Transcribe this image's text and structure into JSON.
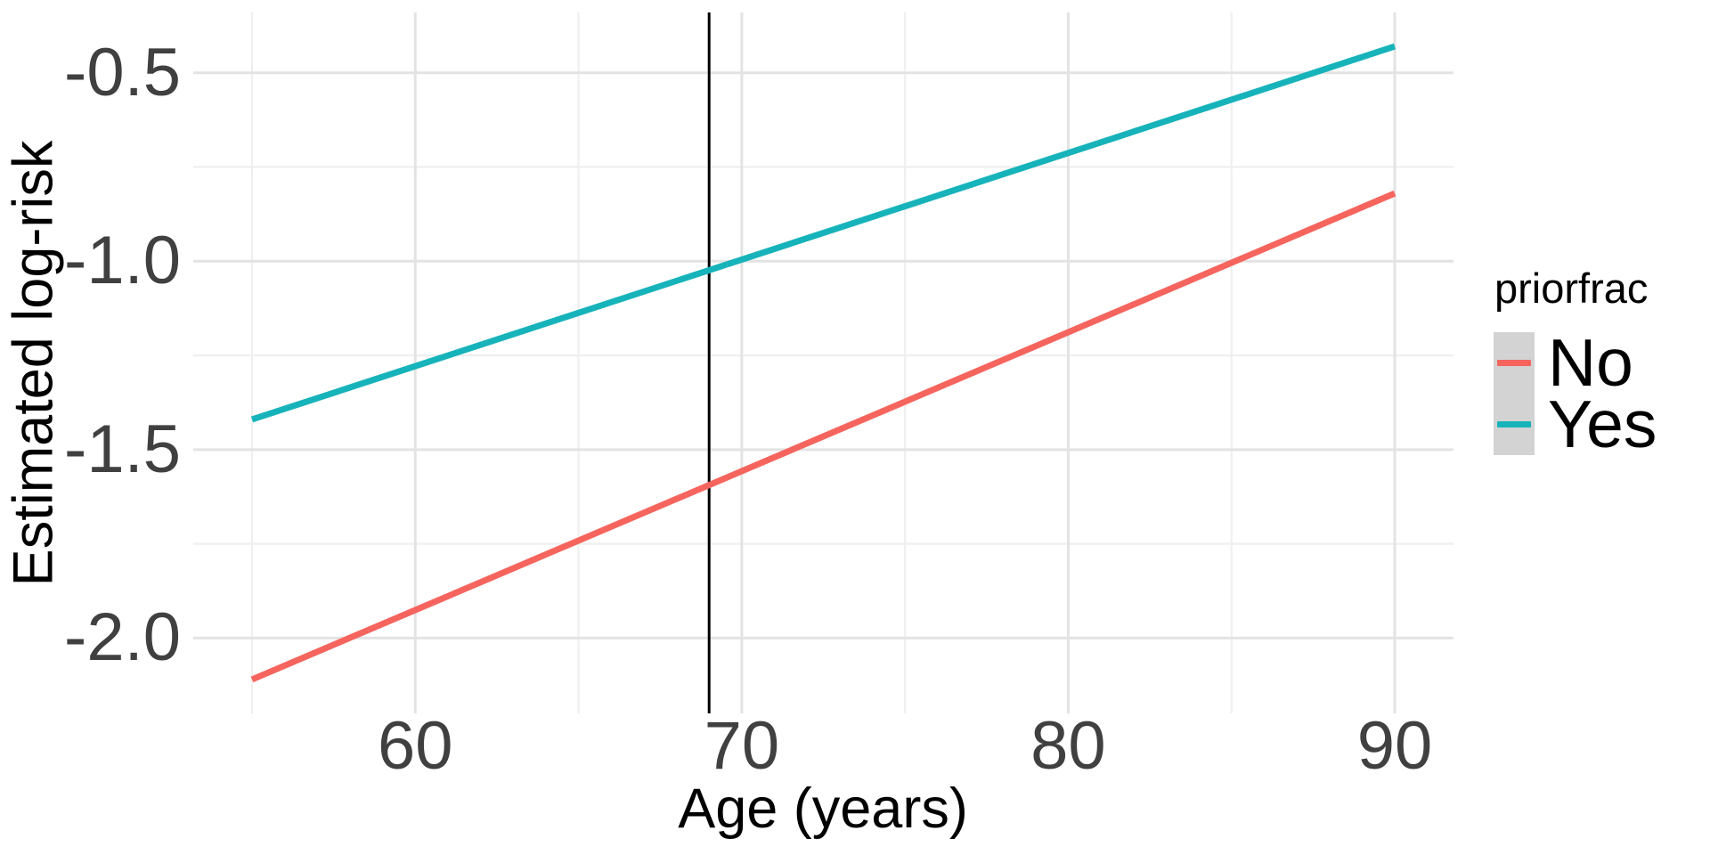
{
  "chart_data": {
    "type": "line",
    "title": "",
    "xlabel": "Age (years)",
    "ylabel": "Estimated log-risk",
    "legend_title": "priorfrac",
    "legend_position": "right",
    "grid": "major and minor gridlines, no axis ticks, white background",
    "xlim": [
      53.2,
      91.8
    ],
    "ylim": [
      -2.2,
      -0.34
    ],
    "x_ticks": [
      {
        "v": 60,
        "label": "60"
      },
      {
        "v": 70,
        "label": "70"
      },
      {
        "v": 80,
        "label": "80"
      },
      {
        "v": 90,
        "label": "90"
      }
    ],
    "x_minor": [
      55,
      65,
      75,
      85
    ],
    "y_ticks": [
      {
        "v": -0.5,
        "label": "-0.5"
      },
      {
        "v": -1.0,
        "label": "-1.0"
      },
      {
        "v": -1.5,
        "label": "-1.5"
      },
      {
        "v": -2.0,
        "label": "-2.0"
      }
    ],
    "y_minor": [
      -0.75,
      -1.25,
      -1.75
    ],
    "series": [
      {
        "name": "No",
        "color": "#F5655E",
        "x": [
          55,
          90
        ],
        "y": [
          -2.11,
          -0.82
        ]
      },
      {
        "name": "Yes",
        "color": "#17B3BA",
        "x": [
          55,
          90
        ],
        "y": [
          -1.42,
          -0.43
        ]
      }
    ],
    "reference_line": {
      "axis": "x",
      "value": 69,
      "color": "#000000"
    }
  },
  "colors": {
    "background": "#FFFFFF",
    "grid_major": "#E3E3E3",
    "grid_minor": "#EFEFEF",
    "tick_text": "#404040",
    "title_text": "#000000",
    "legend_key_bg": "#D3D3D3"
  }
}
